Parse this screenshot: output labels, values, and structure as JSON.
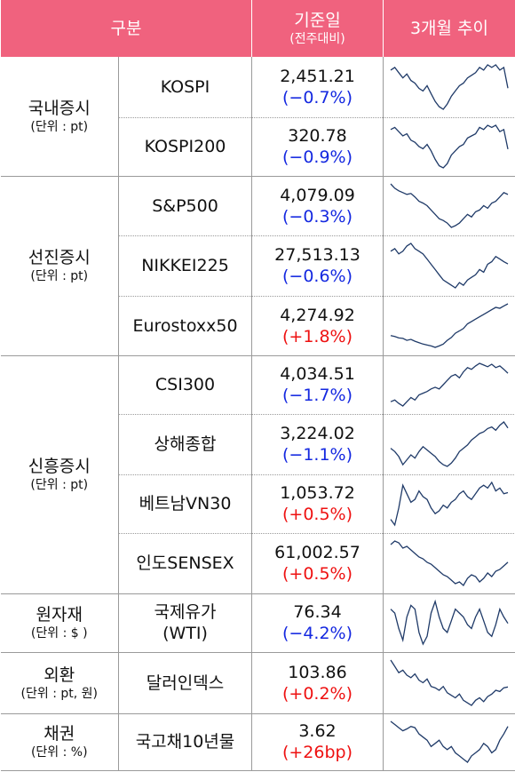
{
  "header": {
    "col1": "구분",
    "col3_main": "기준일",
    "col3_sub": "(전주대비)",
    "col4": "3개월 추이"
  },
  "colors": {
    "header_bg": "#f0627e",
    "negative": "#1428e0",
    "positive": "#ee1111",
    "spark": "#1f3a68"
  },
  "categories": [
    {
      "name": "국내증시",
      "unit": "(단위 : pt)"
    },
    {
      "name": "선진증시",
      "unit": "(단위 : pt)"
    },
    {
      "name": "신흥증시",
      "unit": "(단위 : pt)"
    },
    {
      "name": "원자재",
      "unit": "(단위 : $ )"
    },
    {
      "name": "외환",
      "unit": "(단위 : pt, 원)"
    },
    {
      "name": "채권",
      "unit": "(단위 : %)"
    }
  ],
  "rows": [
    {
      "name": "KOSPI",
      "value": "2,451.21",
      "change": "(−0.7%)",
      "dir": "neg",
      "trend": [
        2520,
        2530,
        2510,
        2490,
        2505,
        2480,
        2470,
        2450,
        2440,
        2460,
        2430,
        2400,
        2380,
        2370,
        2390,
        2420,
        2440,
        2460,
        2470,
        2490,
        2500,
        2510,
        2530,
        2520,
        2540,
        2530,
        2540,
        2520,
        2530,
        2451
      ]
    },
    {
      "name": "KOSPI200",
      "value": "320.78",
      "change": "(−0.9%)",
      "dir": "neg",
      "trend": [
        330,
        331,
        329,
        327,
        328,
        325,
        324,
        322,
        321,
        323,
        320,
        316,
        313,
        312,
        314,
        318,
        320,
        322,
        323,
        326,
        327,
        328,
        331,
        330,
        332,
        331,
        332,
        329,
        330,
        320.78
      ]
    },
    {
      "name": "S&P500",
      "value": "4,079.09",
      "change": "(−0.3%)",
      "dir": "neg",
      "trend": [
        4200,
        4150,
        4120,
        4100,
        4080,
        4090,
        4050,
        4000,
        3980,
        3950,
        3900,
        3850,
        3800,
        3780,
        3750,
        3700,
        3720,
        3750,
        3800,
        3850,
        3820,
        3880,
        3900,
        3950,
        3920,
        3980,
        4000,
        4050,
        4100,
        4079
      ]
    },
    {
      "name": "NIKKEI225",
      "value": "27,513.13",
      "change": "(−0.6%)",
      "dir": "neg",
      "trend": [
        28000,
        28100,
        27900,
        28000,
        28200,
        28300,
        28100,
        28000,
        27900,
        27700,
        27500,
        27300,
        27100,
        26900,
        26800,
        26700,
        26600,
        26800,
        26700,
        26900,
        27000,
        27100,
        27300,
        27200,
        27500,
        27600,
        27800,
        27700,
        27600,
        27513
      ]
    },
    {
      "name": "Eurostoxx50",
      "value": "4,274.92",
      "change": "(+1.8%)",
      "dir": "pos",
      "trend": [
        3600,
        3580,
        3550,
        3540,
        3500,
        3520,
        3480,
        3450,
        3420,
        3400,
        3380,
        3350,
        3380,
        3420,
        3500,
        3560,
        3650,
        3700,
        3750,
        3850,
        3900,
        3950,
        4000,
        4050,
        4100,
        4150,
        4200,
        4180,
        4230,
        4275
      ]
    },
    {
      "name": "CSI300",
      "value": "4,034.51",
      "change": "(−1.7%)",
      "dir": "neg",
      "trend": [
        3700,
        3720,
        3680,
        3650,
        3700,
        3750,
        3720,
        3780,
        3800,
        3820,
        3850,
        3870,
        3850,
        3900,
        3950,
        4000,
        4020,
        3980,
        4050,
        4100,
        4080,
        4120,
        4150,
        4130,
        4110,
        4140,
        4100,
        4120,
        4080,
        4034
      ]
    },
    {
      "name": "상해종합",
      "value": "3,224.02",
      "change": "(−1.1%)",
      "dir": "neg",
      "trend": [
        3100,
        3080,
        3050,
        3000,
        3030,
        3060,
        3040,
        3080,
        3110,
        3090,
        3070,
        3050,
        3020,
        3000,
        2990,
        3010,
        3040,
        3080,
        3100,
        3120,
        3150,
        3170,
        3190,
        3200,
        3220,
        3230,
        3210,
        3240,
        3260,
        3224
      ]
    },
    {
      "name": "베트남VN30",
      "value": "1,053.72",
      "change": "(+0.5%)",
      "dir": "pos",
      "trend": [
        960,
        940,
        1000,
        1080,
        1050,
        1020,
        1030,
        1060,
        1040,
        1030,
        1000,
        980,
        990,
        1010,
        1000,
        1020,
        1030,
        1050,
        1060,
        1040,
        1030,
        1050,
        1070,
        1080,
        1070,
        1090,
        1060,
        1070,
        1050,
        1054
      ]
    },
    {
      "name": "인도SENSEX",
      "value": "61,002.57",
      "change": "(+0.5%)",
      "dir": "pos",
      "trend": [
        62000,
        62200,
        62100,
        61800,
        61900,
        61700,
        61500,
        61300,
        61200,
        61000,
        60900,
        60700,
        60500,
        60300,
        60200,
        60000,
        59800,
        59900,
        59700,
        60100,
        60300,
        60200,
        59900,
        60100,
        60400,
        60200,
        60500,
        60600,
        60800,
        61003
      ]
    },
    {
      "name": "국제유가\n(WTI)",
      "name1": "국제유가",
      "name2": "(WTI)",
      "value": "76.34",
      "change": "(−4.2%)",
      "dir": "neg",
      "trend": [
        80,
        79,
        75,
        72,
        78,
        81,
        80,
        74,
        71,
        73,
        79,
        82,
        78,
        75,
        74,
        77,
        80,
        79,
        78,
        76,
        75,
        78,
        80,
        77,
        74,
        73,
        76,
        80,
        78,
        76.34
      ]
    },
    {
      "name": "달러인덱스",
      "value": "103.86",
      "change": "(+0.2%)",
      "dir": "pos",
      "trend": [
        106,
        105.5,
        105,
        105.2,
        104.8,
        104.6,
        104.9,
        104.4,
        104.2,
        104.5,
        103.9,
        103.8,
        103.6,
        103.9,
        103.4,
        103.2,
        103.0,
        103.3,
        102.8,
        102.6,
        102.4,
        102.8,
        103.0,
        102.7,
        103.1,
        103.3,
        103.6,
        103.5,
        103.8,
        103.86
      ]
    },
    {
      "name": "국고채10년물",
      "value": "3.62",
      "change": "(+26bp)",
      "dir": "pos",
      "trend": [
        3.7,
        3.65,
        3.6,
        3.55,
        3.58,
        3.62,
        3.6,
        3.5,
        3.45,
        3.4,
        3.3,
        3.35,
        3.4,
        3.3,
        3.25,
        3.3,
        3.2,
        3.15,
        3.1,
        3.05,
        3.15,
        3.2,
        3.25,
        3.35,
        3.3,
        3.2,
        3.25,
        3.4,
        3.5,
        3.62
      ]
    }
  ]
}
